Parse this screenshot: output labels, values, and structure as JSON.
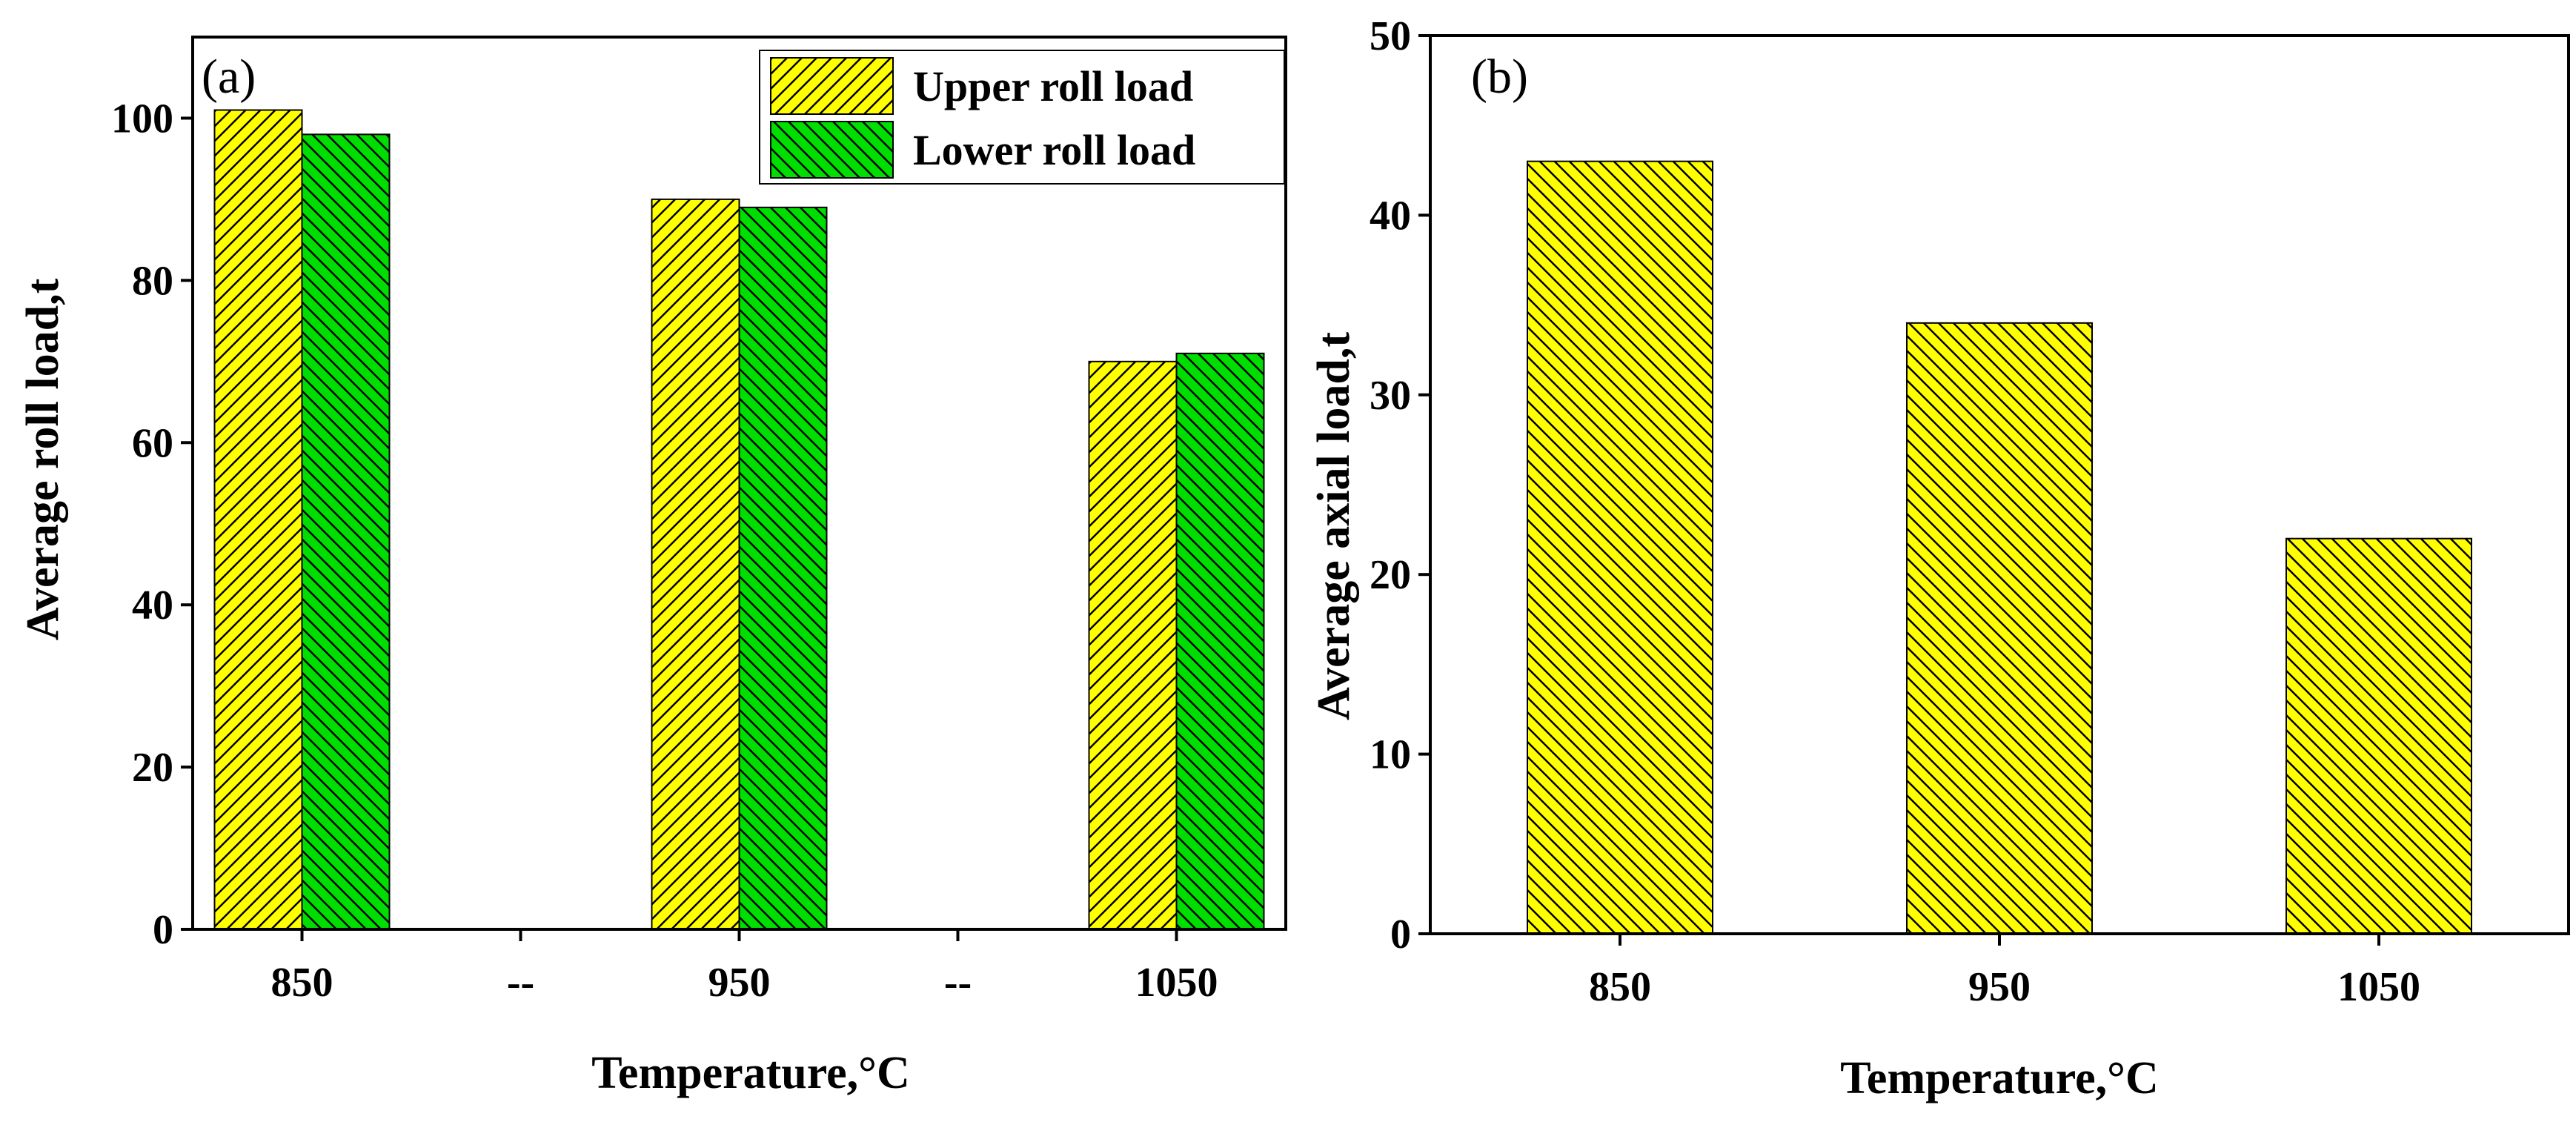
{
  "chart_data": [
    {
      "panel_label": "(a)",
      "type": "bar",
      "categories": [
        "850",
        "--",
        "950",
        "--",
        "1050"
      ],
      "series": [
        {
          "name": "Upper roll load",
          "values": [
            101,
            null,
            90,
            null,
            70
          ],
          "color": "#ffff00",
          "pattern": "hatch-forward"
        },
        {
          "name": "Lower roll load",
          "values": [
            98,
            null,
            89,
            null,
            71
          ],
          "color": "#00dd00",
          "pattern": "hatch-backward"
        }
      ],
      "xlabel": "Temperature,°C",
      "ylabel": "Average roll load,t",
      "ylim": [
        0,
        110
      ],
      "yticks": [
        0,
        20,
        40,
        60,
        80,
        100
      ],
      "legend": "top-right"
    },
    {
      "panel_label": "(b)",
      "type": "bar",
      "categories": [
        "850",
        "950",
        "1050"
      ],
      "series": [
        {
          "name": "Average axial load",
          "values": [
            43,
            34,
            22
          ],
          "color": "#ffff00",
          "pattern": "hatch-backward"
        }
      ],
      "xlabel": "Temperature,°C",
      "ylabel": "Average  axial load,t",
      "ylim": [
        0,
        50
      ],
      "yticks": [
        0,
        10,
        20,
        30,
        40,
        50
      ]
    }
  ]
}
